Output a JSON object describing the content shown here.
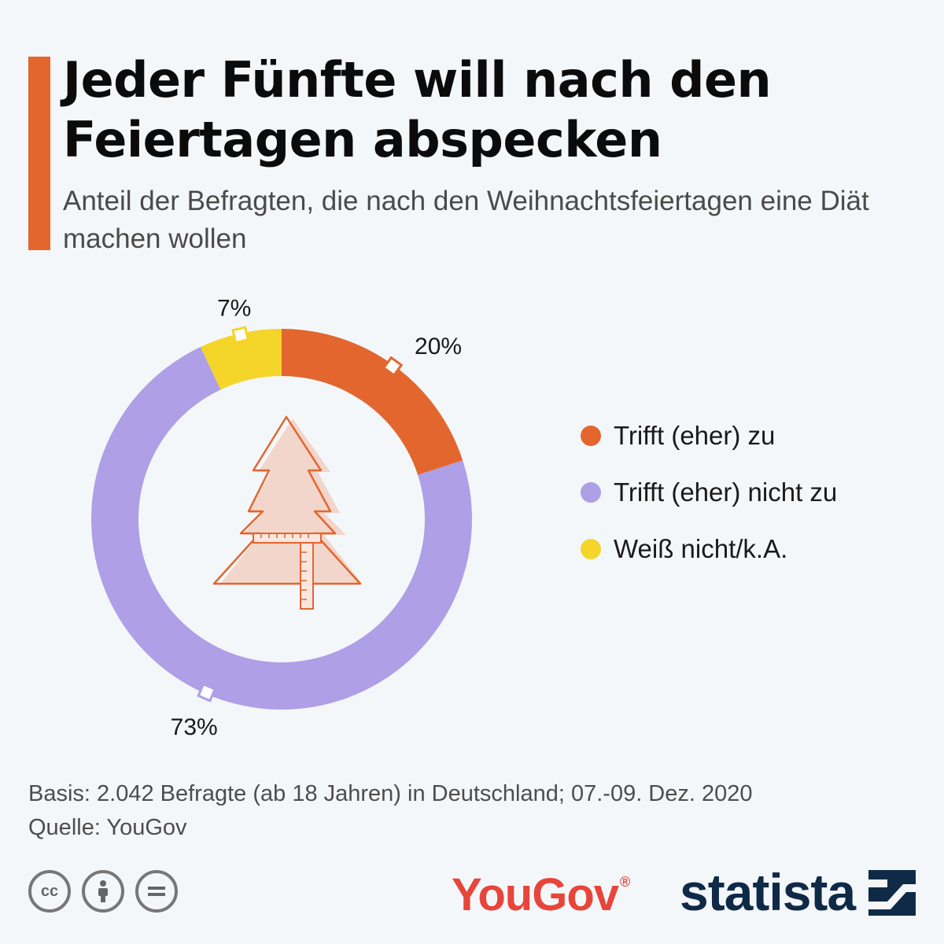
{
  "title": "Jeder Fünfte will nach den Feiertagen abspecken",
  "subtitle": "Anteil der Befragten, die nach den Weihnachtsfeiertagen eine Diät machen wollen",
  "chart_data": {
    "type": "pie",
    "donut": true,
    "categories": [
      "Trifft (eher) zu",
      "Trifft (eher) nicht zu",
      "Weiß nicht/k.A."
    ],
    "values": [
      20,
      73,
      7
    ],
    "value_labels": [
      "20%",
      "73%",
      "7%"
    ],
    "colors": [
      "#e3662e",
      "#ae9fe6",
      "#f5d52a"
    ],
    "legend_position": "right"
  },
  "footnote": {
    "basis": "Basis: 2.042 Befragte (ab 18 Jahren) in Deutschland; 07.-09. Dez. 2020",
    "source": "Quelle: YouGov"
  },
  "logos": {
    "yougov": "YouGov",
    "statista": "statista"
  },
  "license_icons": [
    "cc-icon",
    "attribution-icon",
    "no-derivatives-icon"
  ]
}
